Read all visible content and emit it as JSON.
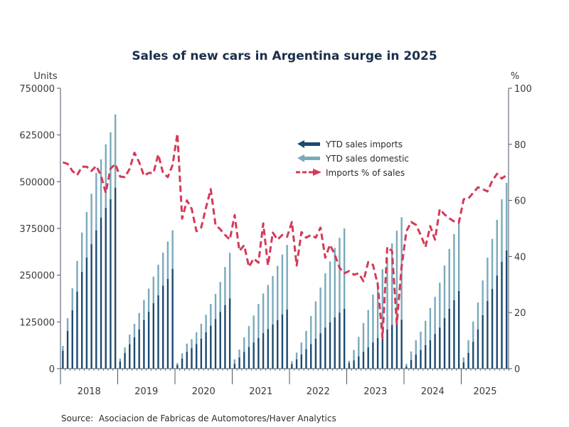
{
  "chart_data": {
    "type": "bar",
    "title": "Sales of new cars in Argentina surge in 2025",
    "ylabel_left": "Units",
    "ylabel_right": "%",
    "ylim_left": [
      0,
      750000
    ],
    "ylim_right": [
      0,
      100
    ],
    "yticks_left": [
      "0",
      "125000",
      "250000",
      "375000",
      "500000",
      "625000",
      "750000"
    ],
    "yticks_left_values": [
      0,
      125000,
      250000,
      375000,
      500000,
      625000,
      750000
    ],
    "yticks_right": [
      "0",
      "20",
      "40",
      "60",
      "80",
      "100"
    ],
    "yticks_right_values": [
      0,
      20,
      40,
      60,
      80,
      100
    ],
    "x_year_labels": [
      "2018",
      "2019",
      "2020",
      "2021",
      "2022",
      "2023",
      "2024",
      "2025"
    ],
    "x_frequency": "monthly",
    "x_start": "2018-01",
    "x_end": "2025-10",
    "grid": false,
    "legend_position": "top-center",
    "legend": [
      {
        "label": "YTD sales imports",
        "color": "#1c4a70",
        "style": "bar"
      },
      {
        "label": "YTD sales domestic",
        "color": "#7aaabb",
        "style": "bar"
      },
      {
        "label": "Imports % of sales",
        "color": "#d43a57",
        "style": "dashed-line"
      }
    ],
    "series": [
      {
        "name": "YTD sales imports",
        "axis": "left",
        "stacked": true,
        "values": [
          48000,
          101000,
          156000,
          206000,
          259000,
          297000,
          333000,
          370000,
          404000,
          430000,
          453000,
          484000,
          19000,
          42000,
          65000,
          84000,
          105000,
          130000,
          152000,
          175000,
          196000,
          222000,
          240000,
          267000,
          10000,
          27000,
          45000,
          55000,
          66000,
          80000,
          97000,
          115000,
          133000,
          152000,
          170000,
          188000,
          13000,
          30000,
          45000,
          58000,
          70000,
          82000,
          95000,
          106000,
          118000,
          130000,
          145000,
          158000,
          12000,
          25000,
          38000,
          52000,
          66000,
          80000,
          95000,
          110000,
          124000,
          137000,
          150000,
          160000,
          15000,
          22000,
          33000,
          45000,
          57000,
          70000,
          82000,
          95000,
          105000,
          117000,
          124000,
          131000,
          6000,
          23000,
          38000,
          50000,
          63000,
          76000,
          93000,
          110000,
          135000,
          160000,
          183000,
          208000,
          17000,
          42000,
          72000,
          105000,
          143000,
          181000,
          213000,
          249000,
          286000,
          316000
        ]
      },
      {
        "name": "YTD sales domestic",
        "axis": "left",
        "stacked": true,
        "values": [
          13000,
          34000,
          59000,
          82000,
          105000,
          122000,
          135000,
          154000,
          156000,
          170000,
          179000,
          196000,
          8000,
          15000,
          26000,
          36000,
          44000,
          54000,
          62000,
          71000,
          82000,
          88000,
          100000,
          103000,
          5000,
          14000,
          22000,
          24000,
          31000,
          40000,
          47000,
          58000,
          67000,
          80000,
          102000,
          122000,
          12000,
          21000,
          39000,
          56000,
          72000,
          91000,
          106000,
          118000,
          130000,
          145000,
          160000,
          173000,
          8000,
          18000,
          32000,
          49000,
          75000,
          100000,
          122000,
          145000,
          163000,
          186000,
          200000,
          215000,
          6000,
          28000,
          52000,
          77000,
          100000,
          128000,
          150000,
          171000,
          190000,
          218000,
          245000,
          274000,
          7000,
          23000,
          38000,
          49000,
          65000,
          86000,
          99000,
          120000,
          141000,
          160000,
          177000,
          190000,
          13000,
          34000,
          54000,
          72000,
          93000,
          116000,
          134000,
          149000,
          167000,
          181000
        ]
      },
      {
        "name": "Imports % of sales",
        "axis": "right",
        "type": "line",
        "values": [
          73.6,
          73.0,
          70.5,
          69.0,
          72.0,
          72.0,
          70.5,
          72.3,
          68.8,
          62.7,
          71.3,
          73.0,
          68.5,
          68.3,
          71.3,
          77.0,
          73.6,
          68.8,
          69.8,
          69.8,
          76.4,
          69.8,
          68.3,
          72.6,
          83.8,
          53.5,
          60.0,
          57.0,
          49.0,
          50.3,
          57.4,
          64.0,
          51.3,
          49.7,
          47.7,
          46.0,
          54.8,
          42.0,
          44.0,
          36.3,
          39.3,
          37.8,
          51.8,
          36.8,
          48.5,
          46.0,
          47.7,
          47.0,
          52.3,
          36.8,
          48.7,
          46.7,
          47.7,
          46.7,
          50.3,
          39.6,
          44.2,
          40.6,
          36.0,
          34.0,
          34.8,
          33.5,
          34.0,
          31.2,
          38.0,
          37.0,
          30.0,
          11.0,
          43.4,
          41.9,
          16.0,
          36.3,
          49.0,
          52.3,
          51.3,
          47.7,
          43.4,
          50.8,
          46.0,
          56.9,
          55.0,
          53.6,
          52.5,
          52.0,
          60.4,
          60.7,
          62.7,
          64.7,
          64.0,
          63.2,
          67.0,
          69.5,
          67.8,
          69.0
        ]
      }
    ]
  },
  "source": "Source:  Asociacion de Fabricas de Automotores/Haver Analytics"
}
